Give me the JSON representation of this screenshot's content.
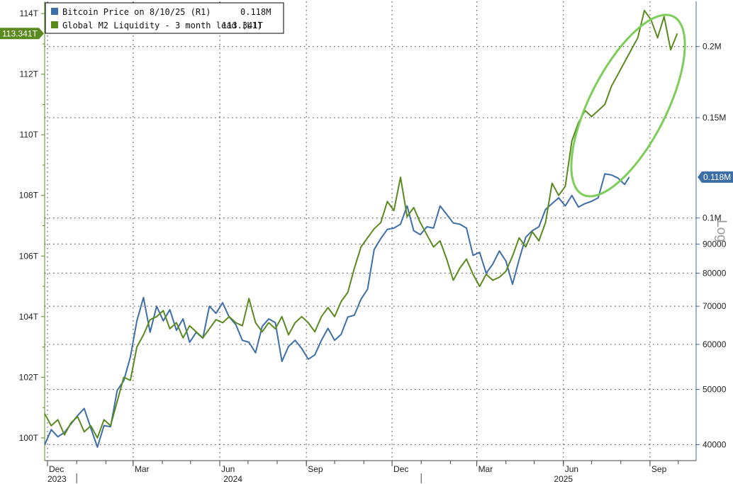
{
  "chart_data": {
    "type": "line",
    "legend": {
      "placement": "top-left",
      "entries": [
        {
          "label": "Bitcoin Price on 8/10/25 (R1)",
          "value": "0.118M",
          "color": "#3d6ea8"
        },
        {
          "label": "Global M2 Liquidity - 3 month lead (L1)",
          "value": "113.341T",
          "color": "#5a8a1f"
        }
      ]
    },
    "colors": {
      "bitcoin": "#3d6ea8",
      "m2": "#5a8a1f",
      "ellipse": "#7ccd5a",
      "grid": "#555555"
    },
    "grid": true,
    "left_axis": {
      "scale": "linear",
      "range": [
        99.25,
        114.4
      ],
      "ticks": [
        100,
        102,
        104,
        106,
        108,
        110,
        112,
        114
      ],
      "tick_labels": [
        "100T",
        "102T",
        "104T",
        "106T",
        "108T",
        "110T",
        "112T",
        "114T"
      ],
      "current_label": "113.341T",
      "current_value": 113.341
    },
    "right_axis": {
      "scale": "log",
      "label": "Log",
      "range": [
        37500,
        240000
      ],
      "ticks": [
        40000,
        50000,
        60000,
        70000,
        80000,
        90000,
        100000,
        150000,
        200000
      ],
      "tick_labels": [
        "40000",
        "50000",
        "60000",
        "70000",
        "80000",
        "90000",
        "0.1M",
        "0.15M",
        "0.2M"
      ],
      "current_label": "0.118M",
      "current_value": 118000
    },
    "x_axis": {
      "range": [
        "2023-11-28",
        "2025-10-20"
      ],
      "ticks": [
        {
          "date": "2023-12-01",
          "label": "Dec"
        },
        {
          "date": "2024-03-01",
          "label": "Mar"
        },
        {
          "date": "2024-06-01",
          "label": "Jun"
        },
        {
          "date": "2024-09-01",
          "label": "Sep"
        },
        {
          "date": "2024-12-01",
          "label": "Dec"
        },
        {
          "date": "2025-03-01",
          "label": "Mar"
        },
        {
          "date": "2025-06-01",
          "label": "Jun"
        },
        {
          "date": "2025-09-01",
          "label": "Sep"
        }
      ],
      "years": [
        {
          "date": "2023-12-01",
          "label": "2023"
        },
        {
          "date": "2024-06-15",
          "label": "2024"
        },
        {
          "date": "2025-06-01",
          "label": "2025"
        }
      ]
    },
    "series": [
      {
        "name": "Bitcoin Price on 8/10/25 (R1)",
        "axis": "right",
        "points": [
          [
            "2023-11-28",
            40000
          ],
          [
            "2023-12-05",
            42500
          ],
          [
            "2023-12-12",
            41300
          ],
          [
            "2023-12-19",
            42000
          ],
          [
            "2023-12-26",
            43500
          ],
          [
            "2024-01-02",
            45000
          ],
          [
            "2024-01-09",
            46300
          ],
          [
            "2024-01-16",
            42800
          ],
          [
            "2024-01-23",
            39600
          ],
          [
            "2024-01-30",
            43200
          ],
          [
            "2024-02-06",
            43000
          ],
          [
            "2024-02-13",
            49800
          ],
          [
            "2024-02-20",
            51800
          ],
          [
            "2024-02-27",
            57000
          ],
          [
            "2024-03-05",
            66000
          ],
          [
            "2024-03-12",
            72500
          ],
          [
            "2024-03-19",
            63000
          ],
          [
            "2024-03-26",
            70000
          ],
          [
            "2024-04-02",
            66000
          ],
          [
            "2024-04-09",
            69000
          ],
          [
            "2024-04-16",
            63500
          ],
          [
            "2024-04-23",
            66500
          ],
          [
            "2024-04-30",
            60500
          ],
          [
            "2024-05-07",
            63000
          ],
          [
            "2024-05-14",
            61500
          ],
          [
            "2024-05-21",
            70000
          ],
          [
            "2024-05-28",
            68000
          ],
          [
            "2024-06-04",
            71000
          ],
          [
            "2024-06-11",
            67000
          ],
          [
            "2024-06-18",
            65000
          ],
          [
            "2024-06-25",
            61000
          ],
          [
            "2024-07-02",
            60500
          ],
          [
            "2024-07-09",
            58000
          ],
          [
            "2024-07-16",
            64500
          ],
          [
            "2024-07-23",
            66500
          ],
          [
            "2024-07-30",
            65500
          ],
          [
            "2024-08-06",
            56000
          ],
          [
            "2024-08-13",
            59500
          ],
          [
            "2024-08-20",
            61000
          ],
          [
            "2024-08-27",
            59000
          ],
          [
            "2024-09-03",
            56500
          ],
          [
            "2024-09-10",
            57500
          ],
          [
            "2024-09-17",
            61000
          ],
          [
            "2024-09-24",
            64000
          ],
          [
            "2024-10-01",
            61000
          ],
          [
            "2024-10-08",
            62500
          ],
          [
            "2024-10-15",
            67000
          ],
          [
            "2024-10-22",
            67500
          ],
          [
            "2024-10-29",
            72000
          ],
          [
            "2024-11-05",
            75000
          ],
          [
            "2024-11-12",
            88000
          ],
          [
            "2024-11-19",
            92000
          ],
          [
            "2024-11-26",
            95500
          ],
          [
            "2024-12-03",
            96000
          ],
          [
            "2024-12-10",
            97500
          ],
          [
            "2024-12-17",
            105000
          ],
          [
            "2024-12-24",
            95000
          ],
          [
            "2024-12-31",
            93500
          ],
          [
            "2025-01-07",
            96500
          ],
          [
            "2025-01-14",
            96000
          ],
          [
            "2025-01-21",
            105000
          ],
          [
            "2025-01-28",
            101500
          ],
          [
            "2025-02-04",
            98000
          ],
          [
            "2025-02-11",
            97500
          ],
          [
            "2025-02-18",
            96000
          ],
          [
            "2025-02-25",
            86000
          ],
          [
            "2025-03-04",
            87000
          ],
          [
            "2025-03-11",
            80000
          ],
          [
            "2025-03-18",
            83000
          ],
          [
            "2025-03-25",
            87500
          ],
          [
            "2025-04-01",
            84000
          ],
          [
            "2025-04-08",
            76500
          ],
          [
            "2025-04-15",
            84500
          ],
          [
            "2025-04-22",
            92500
          ],
          [
            "2025-04-29",
            95000
          ],
          [
            "2025-05-06",
            96500
          ],
          [
            "2025-05-13",
            103500
          ],
          [
            "2025-05-20",
            106000
          ],
          [
            "2025-05-27",
            108500
          ],
          [
            "2025-06-03",
            105000
          ],
          [
            "2025-06-10",
            109500
          ],
          [
            "2025-06-17",
            104500
          ],
          [
            "2025-06-24",
            106000
          ],
          [
            "2025-07-01",
            107000
          ],
          [
            "2025-07-08",
            108500
          ],
          [
            "2025-07-15",
            119500
          ],
          [
            "2025-07-22",
            119000
          ],
          [
            "2025-07-29",
            117500
          ],
          [
            "2025-08-05",
            114500
          ],
          [
            "2025-08-10",
            118000
          ]
        ]
      },
      {
        "name": "Global M2 Liquidity - 3 month lead (L1)",
        "axis": "left",
        "points": [
          [
            "2023-11-28",
            100.8
          ],
          [
            "2023-12-05",
            100.4
          ],
          [
            "2023-12-12",
            100.6
          ],
          [
            "2023-12-19",
            100.1
          ],
          [
            "2023-12-26",
            100.5
          ],
          [
            "2024-01-02",
            100.7
          ],
          [
            "2024-01-09",
            100.2
          ],
          [
            "2024-01-16",
            100.4
          ],
          [
            "2024-01-23",
            100.0
          ],
          [
            "2024-01-30",
            100.6
          ],
          [
            "2024-02-06",
            100.4
          ],
          [
            "2024-02-13",
            101.2
          ],
          [
            "2024-02-20",
            102.0
          ],
          [
            "2024-02-27",
            101.9
          ],
          [
            "2024-03-05",
            103.0
          ],
          [
            "2024-03-12",
            103.4
          ],
          [
            "2024-03-19",
            103.9
          ],
          [
            "2024-03-26",
            104.0
          ],
          [
            "2024-04-02",
            104.2
          ],
          [
            "2024-04-09",
            103.6
          ],
          [
            "2024-04-16",
            103.8
          ],
          [
            "2024-04-23",
            103.3
          ],
          [
            "2024-04-30",
            103.7
          ],
          [
            "2024-05-07",
            103.5
          ],
          [
            "2024-05-14",
            103.3
          ],
          [
            "2024-05-21",
            103.6
          ],
          [
            "2024-05-28",
            103.9
          ],
          [
            "2024-06-04",
            103.8
          ],
          [
            "2024-06-11",
            104.0
          ],
          [
            "2024-06-18",
            103.8
          ],
          [
            "2024-06-25",
            103.7
          ],
          [
            "2024-07-02",
            104.6
          ],
          [
            "2024-07-09",
            103.8
          ],
          [
            "2024-07-16",
            103.5
          ],
          [
            "2024-07-23",
            103.8
          ],
          [
            "2024-07-30",
            103.6
          ],
          [
            "2024-08-06",
            104.0
          ],
          [
            "2024-08-13",
            103.4
          ],
          [
            "2024-08-20",
            103.8
          ],
          [
            "2024-08-27",
            104.0
          ],
          [
            "2024-09-03",
            103.8
          ],
          [
            "2024-09-10",
            103.5
          ],
          [
            "2024-09-17",
            104.0
          ],
          [
            "2024-09-24",
            104.3
          ],
          [
            "2024-10-01",
            104.0
          ],
          [
            "2024-10-08",
            104.5
          ],
          [
            "2024-10-15",
            104.8
          ],
          [
            "2024-10-22",
            105.6
          ],
          [
            "2024-10-29",
            106.3
          ],
          [
            "2024-11-05",
            106.6
          ],
          [
            "2024-11-12",
            106.9
          ],
          [
            "2024-11-19",
            107.1
          ],
          [
            "2024-11-26",
            107.8
          ],
          [
            "2024-12-03",
            107.5
          ],
          [
            "2024-12-10",
            108.6
          ],
          [
            "2024-12-17",
            107.3
          ],
          [
            "2024-12-24",
            107.6
          ],
          [
            "2024-12-31",
            107.1
          ],
          [
            "2025-01-07",
            106.7
          ],
          [
            "2025-01-14",
            106.3
          ],
          [
            "2025-01-21",
            106.5
          ],
          [
            "2025-01-28",
            105.9
          ],
          [
            "2025-02-04",
            105.2
          ],
          [
            "2025-02-11",
            105.6
          ],
          [
            "2025-02-18",
            105.9
          ],
          [
            "2025-02-25",
            105.4
          ],
          [
            "2025-03-04",
            105.0
          ],
          [
            "2025-03-11",
            105.4
          ],
          [
            "2025-03-18",
            105.2
          ],
          [
            "2025-03-25",
            105.3
          ],
          [
            "2025-04-01",
            105.5
          ],
          [
            "2025-04-08",
            106.0
          ],
          [
            "2025-04-15",
            106.6
          ],
          [
            "2025-04-22",
            106.3
          ],
          [
            "2025-04-29",
            106.8
          ],
          [
            "2025-05-06",
            106.5
          ],
          [
            "2025-05-13",
            107.1
          ],
          [
            "2025-05-20",
            108.4
          ],
          [
            "2025-05-27",
            108.0
          ],
          [
            "2025-06-03",
            108.3
          ],
          [
            "2025-06-10",
            109.8
          ],
          [
            "2025-06-17",
            110.4
          ],
          [
            "2025-06-24",
            110.8
          ],
          [
            "2025-07-01",
            110.6
          ],
          [
            "2025-07-08",
            110.8
          ],
          [
            "2025-07-15",
            111.0
          ],
          [
            "2025-07-22",
            111.6
          ],
          [
            "2025-07-29",
            112.0
          ],
          [
            "2025-08-05",
            112.4
          ],
          [
            "2025-08-12",
            112.8
          ],
          [
            "2025-08-19",
            113.2
          ],
          [
            "2025-08-26",
            114.1
          ],
          [
            "2025-09-02",
            113.8
          ],
          [
            "2025-09-09",
            113.2
          ],
          [
            "2025-09-16",
            113.9
          ],
          [
            "2025-09-23",
            112.8
          ],
          [
            "2025-09-30",
            113.341
          ]
        ]
      }
    ]
  }
}
